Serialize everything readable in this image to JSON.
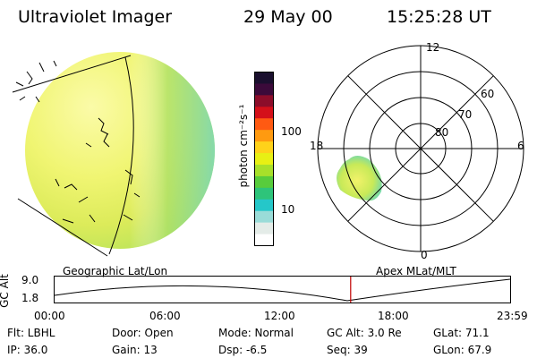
{
  "header": {
    "instrument": "Ultraviolet Imager",
    "date": "29 May 00",
    "time": "15:25:28 UT"
  },
  "colorbar": {
    "unit_label": "photon cm⁻²s⁻¹",
    "tick_high": "100",
    "tick_low": "10",
    "colors": [
      "#1a0f2e",
      "#3b0a3a",
      "#8c0d2a",
      "#d4101a",
      "#ff5a12",
      "#ff9a10",
      "#ffd21a",
      "#e8f014",
      "#a8e02a",
      "#58cc3c",
      "#2ec47a",
      "#25c7c9",
      "#9adcd8",
      "#e4ece8",
      "#ffffff"
    ]
  },
  "left_panel": {
    "label": "Geographic Lat/Lon"
  },
  "right_panel": {
    "label": "Apex MLat/MLT",
    "mlt_labels": {
      "top": "12",
      "bottom": "0",
      "left": "18",
      "right": "6"
    },
    "mlat_labels": [
      "60",
      "70",
      "80"
    ]
  },
  "altitude_plot": {
    "ylabel": "GC Alt",
    "yticks": [
      "9.0",
      "1.8"
    ],
    "xticks": [
      "00:00",
      "06:00",
      "12:00",
      "18:00",
      "23:59"
    ],
    "current_time_fraction": 0.6496,
    "marker_color": "#c00000"
  },
  "status": {
    "filter": "Flt: LBHL",
    "door": "Door: Open",
    "mode": "Mode: Normal",
    "gc_alt": "GC Alt: 3.0 Re",
    "glat": "GLat:  71.1",
    "ip": "IP: 36.0",
    "gain": "Gain: 13",
    "dsp": "Dsp:    -6.5",
    "seq": "Seq: 39",
    "glon": "GLon:  67.9"
  }
}
